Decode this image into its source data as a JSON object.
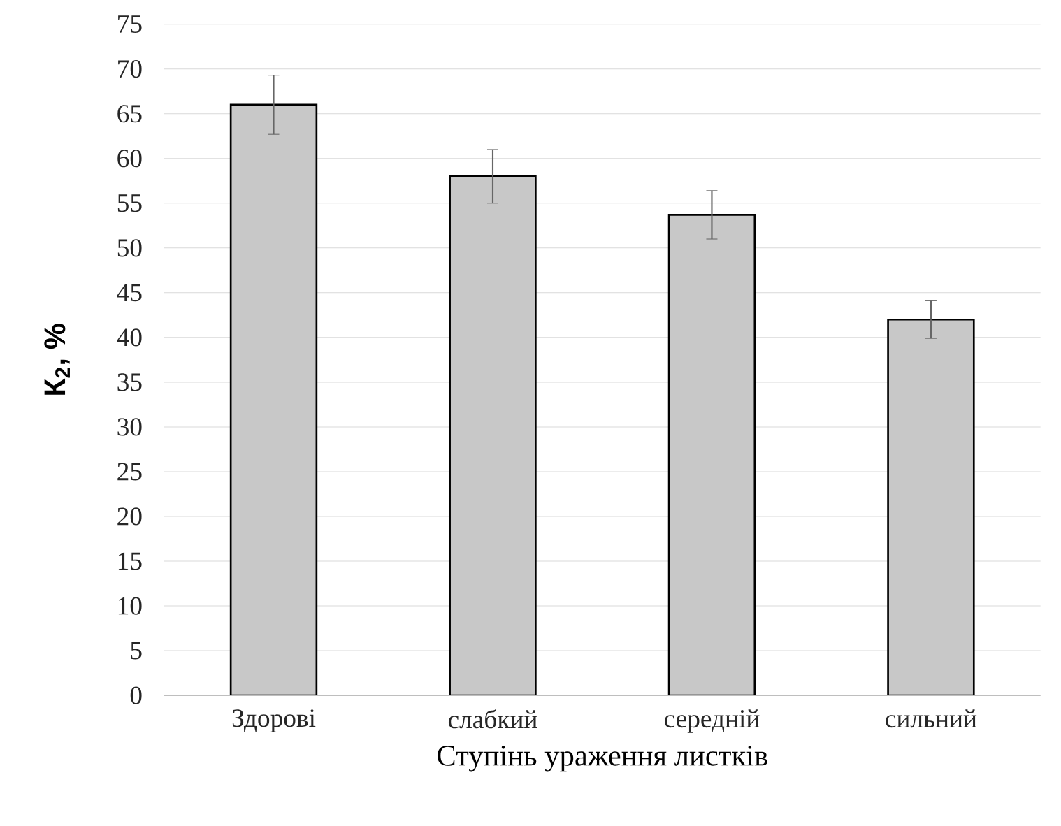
{
  "chart_data": {
    "type": "bar",
    "xlabel": "Ступінь ураження листків",
    "ylabel": "**К$_{2}$, %**",
    "categories": [
      "Здорові",
      "слабкий",
      "середній",
      "сильний"
    ],
    "values": [
      66,
      58,
      53.7,
      42
    ],
    "errors": [
      3.3,
      3,
      2.7,
      2.1
    ],
    "color": "#c8c8c8",
    "ylim": [
      0,
      75
    ],
    "yticks": [
      0,
      5,
      10,
      15,
      20,
      25,
      30,
      35,
      40,
      45,
      50,
      55,
      60,
      65,
      70,
      75
    ],
    "grid": "y"
  }
}
